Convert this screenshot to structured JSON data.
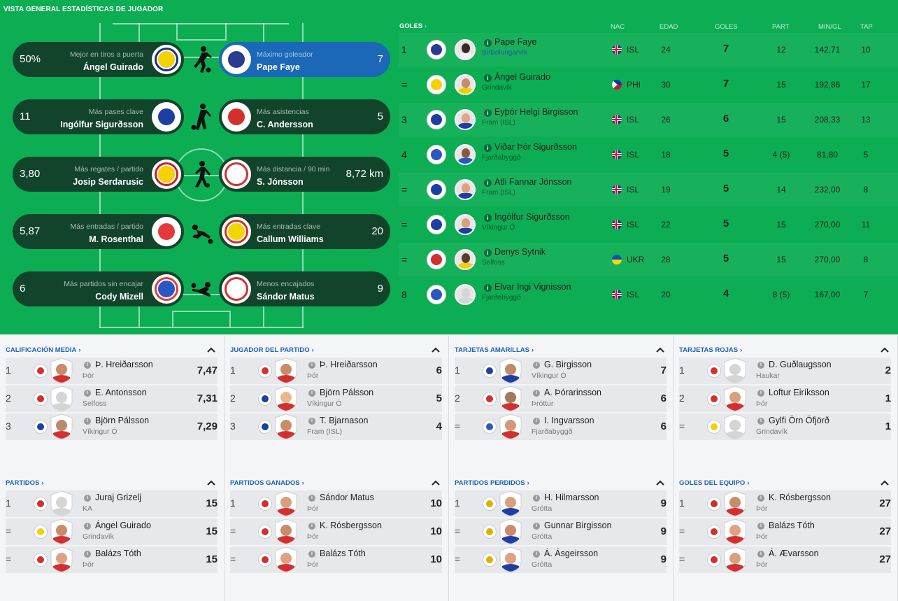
{
  "title": "VISTA GENERAL ESTADÍSTICAS DE JUGADOR",
  "colors": {
    "pitch": "#0cad53",
    "pill": "#12442c",
    "highlight": "#1b67b8",
    "link": "#1f63b8"
  },
  "leaders": [
    {
      "left": {
        "value": "50%",
        "caption": "Mejor en tiros a puerta",
        "name": "Ángel Guirado",
        "badge_color": "#f2d200",
        "ring": "#1a2f8a"
      },
      "icon": "kicking-player-icon",
      "right": {
        "value": "7",
        "caption": "Máximo goleador",
        "name": "Pape Faye",
        "badge_color": "#2b3b8f",
        "ring": "#ffffff",
        "highlighted": true
      }
    },
    {
      "left": {
        "value": "11",
        "caption": "Más pases clave",
        "name": "Ingólfur Sigurðsson",
        "badge_color": "#1d3fa3",
        "ring": "#ffffff"
      },
      "icon": "passing-player-icon",
      "right": {
        "value": "5",
        "caption": "Más asistencias",
        "name": "C. Andersson",
        "badge_color": "#d32f2f",
        "ring": "#ffffff"
      }
    },
    {
      "left": {
        "value": "3,80",
        "caption": "Más regates / partido",
        "name": "Josip Serdarusic",
        "badge_color": "#f5d100",
        "ring": "#d11a2a"
      },
      "icon": "dribbling-player-icon",
      "right": {
        "value": "8,72 km",
        "caption": "Más distancia / 90 min",
        "name": "S. Jónsson",
        "badge_color": "#ffffff",
        "ring": "#d32f2f"
      }
    },
    {
      "left": {
        "value": "5,87",
        "caption": "Más entradas / partido",
        "name": "M. Rosenthal",
        "badge_color": "#e63939",
        "ring": "#ffffff"
      },
      "icon": "tackling-player-icon",
      "right": {
        "value": "20",
        "caption": "Más entradas clave",
        "name": "Callum Williams",
        "badge_color": "#f0d700",
        "ring": "#d32f2f"
      }
    },
    {
      "left": {
        "value": "6",
        "caption": "Más partidos sin encajar",
        "name": "Cody Mizell",
        "badge_color": "#2a57c4",
        "ring": "#e43b3b"
      },
      "icon": "goalkeeper-dive-icon",
      "right": {
        "value": "9",
        "caption": "Menos encajados",
        "name": "Sándor Matus",
        "badge_color": "#ffffff",
        "ring": "#d32f2f"
      }
    }
  ],
  "goals_table": {
    "label": "GOLES",
    "headers": {
      "nac": "NAC",
      "edad": "EDAD",
      "goles": "GOLES",
      "part": "PART",
      "min": "MIN/GL",
      "tap": "TAP"
    },
    "rows": [
      {
        "rank": "1",
        "name": "Pape Faye",
        "club": "BÍ/Bolungarvík",
        "club_link": true,
        "nat": "ISL",
        "flag": "isl",
        "age": "24",
        "goals": "7",
        "apps": "12",
        "min": "142,71",
        "tap": "10",
        "club_color": "#2b3b8f",
        "face": "#3a2a22",
        "kit": "#f2f2f2"
      },
      {
        "rank": "=",
        "name": "Ángel Guirado",
        "club": "Grindavík",
        "nat": "PHI",
        "flag": "phi",
        "age": "30",
        "goals": "7",
        "apps": "15",
        "min": "192,86",
        "tap": "17",
        "club_color": "#f2d200",
        "face": "#c98b6a",
        "kit": "#f0d000"
      },
      {
        "rank": "3",
        "name": "Eyþór Helgi Birgisson",
        "club": "Fram (ISL)",
        "nat": "ISL",
        "flag": "isl",
        "age": "26",
        "goals": "6",
        "apps": "15",
        "min": "208,33",
        "tap": "13",
        "club_color": "#1d3fa3",
        "face": "#e2a48a",
        "kit": "#1d3fa3"
      },
      {
        "rank": "4",
        "name": "Viðar Þór Sigurðsson",
        "club": "Fjarðabyggð",
        "nat": "ISL",
        "flag": "isl",
        "age": "18",
        "goals": "5",
        "apps": "4 (5)",
        "min": "81,80",
        "tap": "5",
        "club_color": "#2a57c4",
        "face": "#8a5a3c",
        "kit": "#2a57c4"
      },
      {
        "rank": "=",
        "name": "Atli Fannar Jónsson",
        "club": "Fram (ISL)",
        "nat": "ISL",
        "flag": "isl",
        "age": "19",
        "goals": "5",
        "apps": "14",
        "min": "232,00",
        "tap": "8",
        "club_color": "#1d3fa3",
        "face": "#e0a083",
        "kit": "#1d3fa3"
      },
      {
        "rank": "=",
        "name": "Ingólfur Sigurðsson",
        "club": "Víkingur Ó",
        "nat": "ISL",
        "flag": "isl",
        "age": "22",
        "goals": "5",
        "apps": "15",
        "min": "270,00",
        "tap": "11",
        "club_color": "#1d3fa3",
        "face": "#d9a07e",
        "kit": "#1d3fa3"
      },
      {
        "rank": "=",
        "name": "Denys Sytnik",
        "club": "Selfoss",
        "nat": "UKR",
        "flag": "ukr",
        "age": "28",
        "goals": "5",
        "apps": "15",
        "min": "270,00",
        "tap": "8",
        "club_color": "#d32f2f",
        "face": "#5a3a2a",
        "kit": "#f0d000"
      },
      {
        "rank": "8",
        "name": "Elvar Ingi Vignisson",
        "club": "Fjarðabyggð",
        "nat": "ISL",
        "flag": "isl",
        "age": "20",
        "goals": "4",
        "apps": "8 (5)",
        "min": "167,00",
        "tap": "7",
        "club_color": "#2a57c4",
        "face": "#d5d5d5",
        "kit": "#d5d5d5"
      }
    ]
  },
  "panels": [
    {
      "title": "CALIFICACIÓN MEDIA",
      "rows": [
        {
          "rank": "1",
          "name": "Þ. Hreiðarsson",
          "club": "Þór",
          "value": "7,47",
          "club_color": "#d32f2f",
          "face": "#c98b6a",
          "kit": "#d32f2f"
        },
        {
          "rank": "2",
          "name": "E. Antonsson",
          "club": "Selfoss",
          "value": "7,31",
          "club_color": "#d32f2f",
          "face": "#d5d5d5",
          "kit": "#d5d5d5"
        },
        {
          "rank": "3",
          "name": "Björn Pálsson",
          "club": "Víkingur Ó",
          "value": "7,29",
          "club_color": "#1d3fa3",
          "face": "#b98a6a",
          "kit": "#d32f2f"
        }
      ]
    },
    {
      "title": "JUGADOR DEL PARTIDO",
      "rows": [
        {
          "rank": "1",
          "name": "Þ. Hreiðarsson",
          "club": "Þór",
          "value": "6",
          "club_color": "#d32f2f",
          "face": "#c98b6a",
          "kit": "#d32f2f"
        },
        {
          "rank": "2",
          "name": "Björn Pálsson",
          "club": "Víkingur Ó",
          "value": "5",
          "club_color": "#1d3fa3",
          "face": "#e8b88a",
          "kit": "#d32f2f"
        },
        {
          "rank": "3",
          "name": "T. Bjarnason",
          "club": "Fram (ISL)",
          "value": "4",
          "club_color": "#1d3fa3",
          "face": "#c98b6a",
          "kit": "#d32f2f"
        }
      ]
    },
    {
      "title": "TARJETAS AMARILLAS",
      "rows": [
        {
          "rank": "1",
          "name": "G. Birgisson",
          "club": "Víkingur Ó",
          "value": "7",
          "club_color": "#1d3fa3",
          "face": "#c08a6a",
          "kit": "#1d3fa3"
        },
        {
          "rank": "2",
          "name": "A. Þórarinsson",
          "club": "Þróttur",
          "value": "6",
          "club_color": "#d32f2f",
          "face": "#a8785a",
          "kit": "#d32f2f"
        },
        {
          "rank": "=",
          "name": "I. Ingvarsson",
          "club": "Fjarðabyggð",
          "value": "6",
          "club_color": "#2a57c4",
          "face": "#d09a78",
          "kit": "#d32f2f"
        }
      ]
    },
    {
      "title": "TARJETAS ROJAS",
      "rows": [
        {
          "rank": "1",
          "name": "D. Guðlaugsson",
          "club": "Haukar",
          "value": "2",
          "club_color": "#d32f2f",
          "face": "#d5d5d5",
          "kit": "#d5d5d5"
        },
        {
          "rank": "2",
          "name": "Loftur Eiríksson",
          "club": "Þór",
          "value": "1",
          "club_color": "#d32f2f",
          "face": "#d9a07e",
          "kit": "#d32f2f"
        },
        {
          "rank": "=",
          "name": "Gylfi Örn Öfjörð",
          "club": "Grindavík",
          "value": "1",
          "club_color": "#f2d200",
          "face": "#d5d5d5",
          "kit": "#d5d5d5"
        }
      ]
    },
    {
      "title": "PARTIDOS",
      "rows": [
        {
          "rank": "1",
          "name": "Juraj Grizelj",
          "club": "KA",
          "value": "15",
          "club_color": "#d32f2f",
          "face": "#d5d5d5",
          "kit": "#d5d5d5"
        },
        {
          "rank": "=",
          "name": "Ángel Guirado",
          "club": "Grindavík",
          "value": "15",
          "club_color": "#f2d200",
          "face": "#c98b6a",
          "kit": "#d32f2f"
        },
        {
          "rank": "=",
          "name": "Balázs Tóth",
          "club": "Þór",
          "value": "15",
          "club_color": "#d32f2f",
          "face": "#e0a083",
          "kit": "#d32f2f"
        }
      ]
    },
    {
      "title": "PARTIDOS GANADOS",
      "rows": [
        {
          "rank": "1",
          "name": "Sándor Matus",
          "club": "Þór",
          "value": "10",
          "club_color": "#d32f2f",
          "face": "#d9a07e",
          "kit": "#d32f2f"
        },
        {
          "rank": "=",
          "name": "K. Rósbergsson",
          "club": "Þór",
          "value": "10",
          "club_color": "#d32f2f",
          "face": "#c98b6a",
          "kit": "#d32f2f"
        },
        {
          "rank": "=",
          "name": "Balázs Tóth",
          "club": "Þór",
          "value": "10",
          "club_color": "#d32f2f",
          "face": "#e0a083",
          "kit": "#d32f2f"
        }
      ]
    },
    {
      "title": "PARTIDOS PERDIDOS",
      "rows": [
        {
          "rank": "1",
          "name": "H. Hilmarsson",
          "club": "Grótta",
          "value": "9",
          "club_color": "#e0b000",
          "face": "#d9a07e",
          "kit": "#1d3fa3"
        },
        {
          "rank": "=",
          "name": "Gunnar Birgisson",
          "club": "Grótta",
          "value": "9",
          "club_color": "#e0b000",
          "face": "#c98b6a",
          "kit": "#1d3fa3"
        },
        {
          "rank": "=",
          "name": "Á. Ásgeirsson",
          "club": "Grótta",
          "value": "9",
          "club_color": "#e0b000",
          "face": "#e0a083",
          "kit": "#1d3fa3"
        }
      ]
    },
    {
      "title": "GOLES DEL EQUIPO",
      "rows": [
        {
          "rank": "1",
          "name": "K. Rósbergsson",
          "club": "Þór",
          "value": "27",
          "club_color": "#d32f2f",
          "face": "#c98b6a",
          "kit": "#d32f2f"
        },
        {
          "rank": "=",
          "name": "Balázs Tóth",
          "club": "Þór",
          "value": "27",
          "club_color": "#d32f2f",
          "face": "#e0a083",
          "kit": "#d32f2f"
        },
        {
          "rank": "=",
          "name": "Á. Ævarsson",
          "club": "Þór",
          "value": "27",
          "club_color": "#d32f2f",
          "face": "#d9a07e",
          "kit": "#d32f2f"
        }
      ]
    }
  ]
}
